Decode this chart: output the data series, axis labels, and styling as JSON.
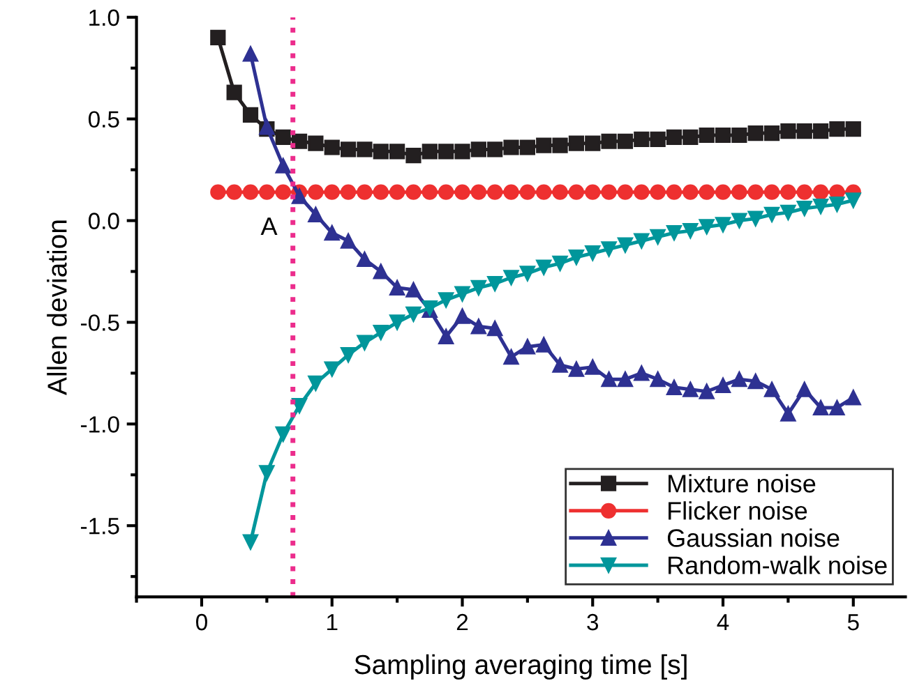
{
  "chart_data": {
    "type": "line",
    "xlabel": "Sampling averaging time [s]",
    "ylabel": "Allen deviation",
    "x": [
      0.125,
      0.25,
      0.375,
      0.5,
      0.625,
      0.75,
      0.875,
      1.0,
      1.125,
      1.25,
      1.375,
      1.5,
      1.625,
      1.75,
      1.875,
      2.0,
      2.125,
      2.25,
      2.375,
      2.5,
      2.625,
      2.75,
      2.875,
      3.0,
      3.125,
      3.25,
      3.375,
      3.5,
      3.625,
      3.75,
      3.875,
      4.0,
      4.125,
      4.25,
      4.375,
      4.5,
      4.625,
      4.75,
      4.875,
      5.0
    ],
    "series": [
      {
        "name": "Mixture noise",
        "color": "#231f20",
        "marker": "square",
        "values": [
          0.9,
          0.63,
          0.52,
          0.45,
          0.41,
          0.39,
          0.38,
          0.36,
          0.35,
          0.35,
          0.34,
          0.34,
          0.32,
          0.34,
          0.34,
          0.34,
          0.35,
          0.35,
          0.36,
          0.36,
          0.37,
          0.37,
          0.38,
          0.38,
          0.39,
          0.39,
          0.4,
          0.4,
          0.41,
          0.41,
          0.42,
          0.42,
          0.42,
          0.43,
          0.43,
          0.44,
          0.44,
          0.44,
          0.45,
          0.45
        ]
      },
      {
        "name": "Flicker noise",
        "color": "#ee3030",
        "marker": "circle",
        "values": [
          0.14,
          0.14,
          0.14,
          0.14,
          0.14,
          0.14,
          0.14,
          0.14,
          0.14,
          0.14,
          0.14,
          0.14,
          0.14,
          0.14,
          0.14,
          0.14,
          0.14,
          0.14,
          0.14,
          0.14,
          0.14,
          0.14,
          0.14,
          0.14,
          0.14,
          0.14,
          0.14,
          0.14,
          0.14,
          0.14,
          0.14,
          0.14,
          0.14,
          0.14,
          0.14,
          0.14,
          0.14,
          0.14,
          0.14,
          0.14
        ]
      },
      {
        "name": "Gaussian noise",
        "color": "#2e3192",
        "marker": "triangle",
        "values": [
          null,
          null,
          0.82,
          0.46,
          0.27,
          0.12,
          0.03,
          -0.06,
          -0.1,
          -0.19,
          -0.25,
          -0.33,
          -0.34,
          -0.44,
          -0.57,
          -0.47,
          -0.52,
          -0.53,
          -0.67,
          -0.62,
          -0.61,
          -0.71,
          -0.73,
          -0.72,
          -0.78,
          -0.78,
          -0.75,
          -0.78,
          -0.82,
          -0.83,
          -0.84,
          -0.81,
          -0.78,
          -0.79,
          -0.83,
          -0.95,
          -0.83,
          -0.92,
          -0.92,
          -0.87
        ]
      },
      {
        "name": "Random-walk noise",
        "color": "#00969b",
        "marker": "triangle_down",
        "values": [
          null,
          null,
          -1.58,
          -1.24,
          -1.05,
          -0.91,
          -0.8,
          -0.73,
          -0.66,
          -0.6,
          -0.55,
          -0.5,
          -0.46,
          -0.43,
          -0.39,
          -0.36,
          -0.33,
          -0.31,
          -0.28,
          -0.26,
          -0.23,
          -0.21,
          -0.18,
          -0.16,
          -0.14,
          -0.12,
          -0.1,
          -0.08,
          -0.06,
          -0.05,
          -0.03,
          -0.02,
          0.0,
          0.01,
          0.03,
          0.04,
          0.06,
          0.07,
          0.08,
          0.1
        ]
      }
    ],
    "xlim": [
      -0.5,
      5.4
    ],
    "ylim": [
      -1.85,
      1.0
    ],
    "xticks": [
      {
        "value": -0.5,
        "label": null
      },
      0,
      {
        "value": 0.5,
        "label": null
      },
      1,
      {
        "value": 1.5,
        "label": null
      },
      2,
      {
        "value": 2.5,
        "label": null
      },
      3,
      {
        "value": 3.5,
        "label": null
      },
      4,
      {
        "value": 4.5,
        "label": null
      },
      5
    ],
    "yticks": [
      {
        "value": -1.75,
        "label": null
      },
      {
        "value": -1.5,
        "label": "-1.5"
      },
      {
        "value": -1.25,
        "label": null
      },
      {
        "value": -1.0,
        "label": "-1.0"
      },
      {
        "value": -0.75,
        "label": null
      },
      {
        "value": -0.5,
        "label": "-0.5"
      },
      {
        "value": -0.25,
        "label": null
      },
      {
        "value": 0.0,
        "label": "0.0"
      },
      {
        "value": 0.25,
        "label": null
      },
      {
        "value": 0.5,
        "label": "0.5"
      },
      {
        "value": 0.75,
        "label": null
      },
      {
        "value": 1.0,
        "label": "1.0"
      }
    ],
    "ref_lines": [
      {
        "axis": "x",
        "value": 0.7,
        "label": null,
        "color": "#ec2c8c",
        "line_style": "dotted"
      }
    ],
    "annotations": [
      {
        "text": "A",
        "x": 0.75,
        "y": 0.12
      }
    ],
    "legend": "bottom right",
    "grid": false
  }
}
